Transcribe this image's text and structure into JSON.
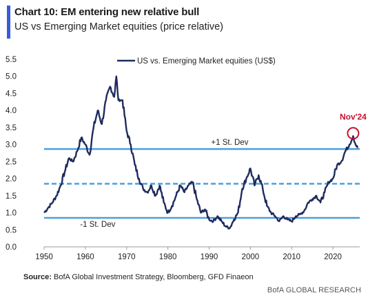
{
  "header": {
    "title": "Chart 10: EM entering new relative bull",
    "subtitle": "US vs Emerging Market equities (price relative)"
  },
  "footer": {
    "source_label": "Source:",
    "source_text": "BofA Global Investment Strategy, Bloomberg, GFD Finaeon",
    "brand": "BofA GLOBAL RESEARCH"
  },
  "colors": {
    "series": "#1f2a5e",
    "bands": "#4a9fdd",
    "highlight": "#c8102e",
    "axis": "#999999"
  },
  "chart_data": {
    "type": "line",
    "title": "",
    "xlabel": "",
    "ylabel": "",
    "xlim": [
      1950,
      2026.5
    ],
    "ylim": [
      0,
      5.5
    ],
    "xticks": [
      "1950",
      "1960",
      "1970",
      "1980",
      "1990",
      "2000",
      "2010",
      "2020"
    ],
    "yticks": [
      "0.0",
      "0.5",
      "1.0",
      "1.5",
      "2.0",
      "2.5",
      "3.0",
      "3.5",
      "4.0",
      "4.5",
      "5.0",
      "5.5"
    ],
    "grid": false,
    "legend_position": "top-center",
    "series": [
      {
        "name": "US vs. Emerging Market equities (US$)",
        "x": [
          1950,
          1951,
          1952,
          1953,
          1954,
          1955,
          1956,
          1957,
          1958,
          1959,
          1960,
          1961,
          1962,
          1963,
          1964,
          1965,
          1966,
          1967,
          1967.5,
          1968,
          1969,
          1970,
          1971,
          1972,
          1973,
          1974,
          1975,
          1976,
          1977,
          1978,
          1979,
          1980,
          1981,
          1982,
          1983,
          1984,
          1985,
          1986,
          1987,
          1988,
          1989,
          1990,
          1991,
          1992,
          1993,
          1994,
          1995,
          1996,
          1997,
          1998,
          1999,
          2000,
          2001,
          2002,
          2003,
          2004,
          2005,
          2006,
          2007,
          2008,
          2009,
          2010,
          2011,
          2012,
          2013,
          2014,
          2015,
          2016,
          2017,
          2018,
          2019,
          2020,
          2021,
          2022,
          2023,
          2024,
          2024.9,
          2025.5,
          2026
        ],
        "y": [
          1.0,
          1.15,
          1.3,
          1.5,
          1.8,
          2.2,
          2.6,
          2.5,
          2.8,
          3.2,
          3.0,
          2.7,
          3.5,
          4.0,
          3.6,
          4.3,
          4.7,
          4.4,
          5.0,
          4.3,
          4.3,
          3.4,
          3.0,
          2.4,
          2.0,
          1.7,
          1.6,
          1.8,
          1.5,
          1.8,
          1.3,
          1.0,
          1.2,
          1.5,
          1.8,
          1.6,
          1.8,
          1.9,
          1.4,
          1.0,
          1.1,
          0.8,
          0.75,
          0.9,
          0.75,
          0.6,
          0.55,
          0.8,
          1.0,
          1.7,
          2.0,
          2.3,
          1.8,
          2.1,
          1.7,
          1.2,
          1.0,
          0.9,
          0.75,
          0.9,
          0.8,
          0.75,
          0.9,
          0.95,
          1.05,
          1.3,
          1.4,
          1.5,
          1.3,
          1.6,
          1.9,
          2.0,
          2.4,
          2.5,
          2.8,
          3.0,
          3.25,
          3.0,
          2.9
        ]
      }
    ],
    "bands": [
      {
        "label": "+1 St. Dev",
        "value": 2.87,
        "style": "solid"
      },
      {
        "label": "",
        "value": 1.85,
        "style": "dashed"
      },
      {
        "label": "-1 St. Dev",
        "value": 0.85,
        "style": "solid"
      }
    ],
    "annotation": {
      "label": "Nov'24",
      "x": 2024.9,
      "y": 3.25
    }
  }
}
